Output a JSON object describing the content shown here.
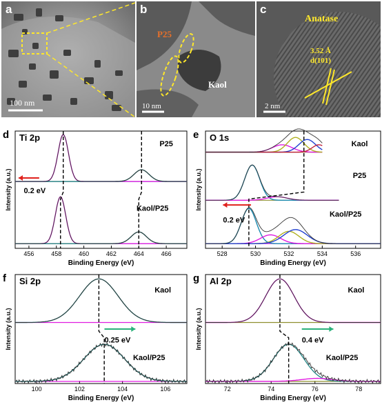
{
  "panels": {
    "a": {
      "letter": "a",
      "scale_bar": "100 nm"
    },
    "b": {
      "letter": "b",
      "label_p25": "P25",
      "label_kaol": "Kaol",
      "scale_bar": "10 nm"
    },
    "c": {
      "letter": "c",
      "label_phase": "Anatase",
      "spacing": "3.52 Å",
      "plane": "d(101)",
      "scale_bar": "2 nm"
    }
  },
  "chart_data": [
    {
      "id": "d",
      "type": "line",
      "letter": "d",
      "title": "Ti 2p",
      "xlabel": "Binding Energy (eV)",
      "ylabel": "Intensity (a.u.)",
      "xlim": [
        455,
        467.5
      ],
      "xticks": [
        456,
        458,
        460,
        462,
        464,
        466
      ],
      "series": [
        {
          "name": "P25"
        },
        {
          "name": "Kaol/P25"
        }
      ],
      "peaks": {
        "P25": [
          458.5,
          464.2
        ],
        "Kaol/P25": [
          458.3,
          464.0
        ]
      },
      "shift_label": "0.2 eV",
      "shift_direction": "left"
    },
    {
      "id": "e",
      "type": "line",
      "letter": "e",
      "title": "O 1s",
      "xlabel": "Binding Energy (eV)",
      "ylabel": "Intensity (a.u.)",
      "xlim": [
        527,
        537.5
      ],
      "xticks": [
        528,
        530,
        532,
        534,
        536
      ],
      "series": [
        {
          "name": "Kaol"
        },
        {
          "name": "P25"
        },
        {
          "name": "Kaol/P25"
        }
      ],
      "peaks": {
        "Kaol": [
          532.9
        ],
        "P25": [
          529.8
        ],
        "Kaol/P25": [
          529.6
        ]
      },
      "shift_label": "0.2 eV",
      "shift_direction": "left"
    },
    {
      "id": "f",
      "type": "line",
      "letter": "f",
      "title": "Si 2p",
      "xlabel": "Binding Energy (eV)",
      "ylabel": "Intensity (a.u.)",
      "xlim": [
        99,
        107
      ],
      "xticks": [
        100,
        102,
        104,
        106
      ],
      "series": [
        {
          "name": "Kaol"
        },
        {
          "name": "Kaol/P25"
        }
      ],
      "peaks": {
        "Kaol": [
          102.9
        ],
        "Kaol/P25": [
          103.15
        ]
      },
      "shift_label": "0.25 eV",
      "shift_direction": "right"
    },
    {
      "id": "g",
      "type": "line",
      "letter": "g",
      "title": "Al 2p",
      "xlabel": "Binding Energy (eV)",
      "ylabel": "Intensity (a.u.)",
      "xlim": [
        71,
        79
      ],
      "xticks": [
        72,
        74,
        76,
        78
      ],
      "series": [
        {
          "name": "Kaol"
        },
        {
          "name": "Kaol/P25"
        }
      ],
      "peaks": {
        "Kaol": [
          74.4
        ],
        "Kaol/P25": [
          74.8
        ]
      },
      "shift_label": "0.4 eV",
      "shift_direction": "right"
    }
  ]
}
